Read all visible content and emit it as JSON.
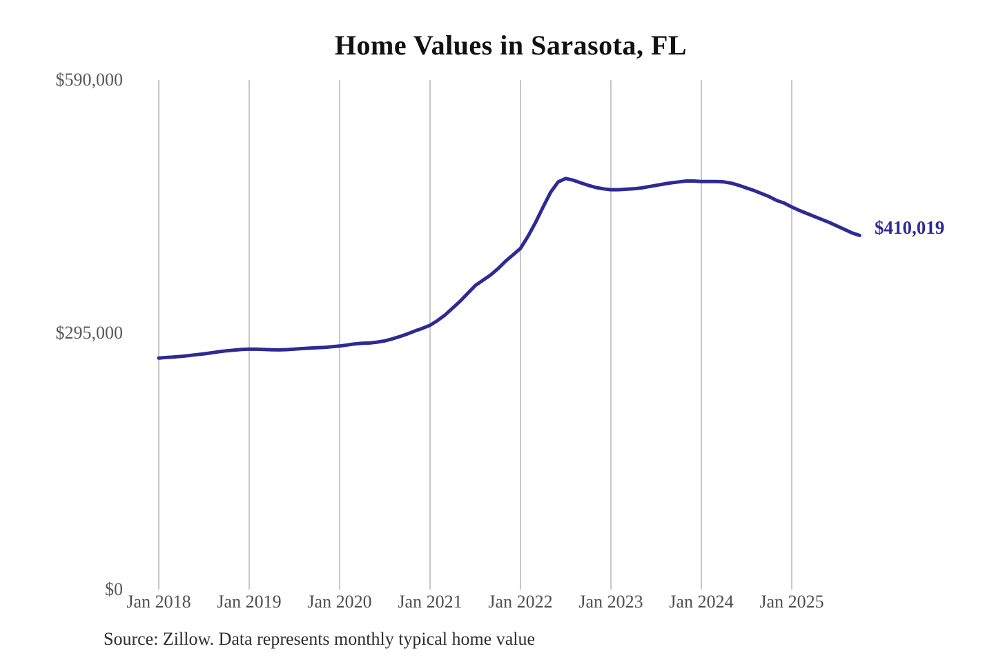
{
  "chart_data": {
    "type": "line",
    "title": "Home Values in Sarasota, FL",
    "series_name": "Monthly typical home value",
    "months": [
      "Jan 2018",
      "Feb 2018",
      "Mar 2018",
      "Apr 2018",
      "May 2018",
      "Jun 2018",
      "Jul 2018",
      "Aug 2018",
      "Sep 2018",
      "Oct 2018",
      "Nov 2018",
      "Dec 2018",
      "Jan 2019",
      "Feb 2019",
      "Mar 2019",
      "Apr 2019",
      "May 2019",
      "Jun 2019",
      "Jul 2019",
      "Aug 2019",
      "Sep 2019",
      "Oct 2019",
      "Nov 2019",
      "Dec 2019",
      "Jan 2020",
      "Feb 2020",
      "Mar 2020",
      "Apr 2020",
      "May 2020",
      "Jun 2020",
      "Jul 2020",
      "Aug 2020",
      "Sep 2020",
      "Oct 2020",
      "Nov 2020",
      "Dec 2020",
      "Jan 2021",
      "Feb 2021",
      "Mar 2021",
      "Apr 2021",
      "May 2021",
      "Jun 2021",
      "Jul 2021",
      "Aug 2021",
      "Sep 2021",
      "Oct 2021",
      "Nov 2021",
      "Dec 2021",
      "Jan 2022",
      "Feb 2022",
      "Mar 2022",
      "Apr 2022",
      "May 2022",
      "Jun 2022",
      "Jul 2022",
      "Aug 2022",
      "Sep 2022",
      "Oct 2022",
      "Nov 2022",
      "Dec 2022",
      "Jan 2023",
      "Feb 2023",
      "Mar 2023",
      "Apr 2023",
      "May 2023",
      "Jun 2023",
      "Jul 2023",
      "Aug 2023",
      "Sep 2023",
      "Oct 2023",
      "Nov 2023",
      "Dec 2023",
      "Jan 2024",
      "Feb 2024",
      "Mar 2024",
      "Apr 2024",
      "May 2024",
      "Jun 2024",
      "Jul 2024",
      "Aug 2024",
      "Sep 2024",
      "Oct 2024",
      "Nov 2024",
      "Dec 2024",
      "Jan 2025",
      "Feb 2025",
      "Mar 2025",
      "Apr 2025",
      "May 2025",
      "Jun 2025",
      "Jul 2025",
      "Aug 2025",
      "Sep 2025",
      "Oct 2025"
    ],
    "values": [
      268000,
      268700,
      269300,
      270000,
      271000,
      272000,
      273000,
      274200,
      275400,
      276500,
      277300,
      278000,
      278500,
      278300,
      278000,
      277700,
      277500,
      277800,
      278500,
      279000,
      279500,
      280000,
      280500,
      281200,
      282000,
      283200,
      284500,
      285200,
      285500,
      286500,
      288000,
      290300,
      293000,
      296000,
      299500,
      302500,
      306000,
      311500,
      318000,
      326000,
      334000,
      343000,
      352000,
      358000,
      364000,
      371500,
      380000,
      387500,
      395000,
      409000,
      425000,
      443000,
      460000,
      472000,
      476000,
      474000,
      471000,
      468000,
      465500,
      464000,
      463000,
      463000,
      463500,
      464000,
      465000,
      466500,
      468000,
      469500,
      471000,
      472000,
      473000,
      473000,
      472500,
      472500,
      472500,
      472000,
      470500,
      468000,
      465000,
      462000,
      458500,
      455000,
      450500,
      447500,
      443000,
      439000,
      435500,
      432000,
      428500,
      425000,
      421000,
      417000,
      413000,
      410019
    ],
    "x_tick_labels": [
      "Jan 2018",
      "Jan 2019",
      "Jan 2020",
      "Jan 2021",
      "Jan 2022",
      "Jan 2023",
      "Jan 2024",
      "Jan 2025"
    ],
    "y_tick_labels": [
      "$0",
      "$295,000",
      "$590,000"
    ],
    "y_ticks": [
      0,
      295000,
      590000
    ],
    "ylim": [
      0,
      590000
    ],
    "grid": "vertical-only",
    "legend": "none",
    "end_label": "$410,019",
    "last_value": 410019,
    "line_color": "#2f2a93",
    "grid_color": "#c8c8c8",
    "title_color": "#111111",
    "tick_label_color": "#595959"
  },
  "annotations": {
    "source": "Source: Zillow. Data represents monthly typical home value"
  }
}
